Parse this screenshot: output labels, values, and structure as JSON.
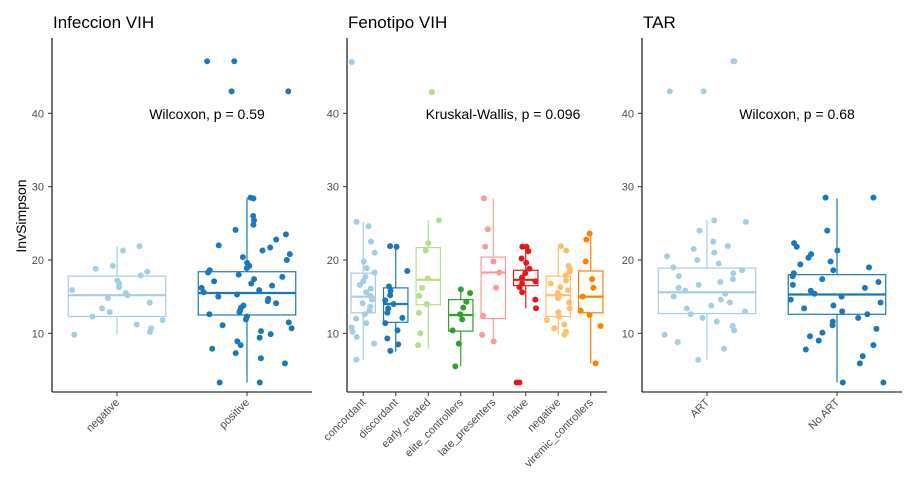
{
  "chart_data": {
    "type": "boxplot",
    "ylabel": "InvSimpson",
    "yticks": [
      10,
      20,
      30,
      40
    ],
    "ylim": [
      2,
      50
    ],
    "panels": [
      {
        "title": "Infeccion VIH",
        "stat_label": "Wilcoxon, p = 0.59",
        "groups": [
          {
            "name": "negative",
            "color": "#a6cee3",
            "box": {
              "min": 9.8,
              "q1": 12.3,
              "median": 15.2,
              "q3": 17.8,
              "max": 21.8
            },
            "points": [
              21.9,
              21.3,
              19.2,
              18.8,
              18.4,
              17.9,
              17.2,
              16.8,
              16.3,
              15.9,
              15.5,
              15.2,
              14.8,
              14.2,
              13.4,
              12.9,
              12.3,
              11.8,
              11.2,
              10.7,
              10.2,
              9.8
            ]
          },
          {
            "name": "positive",
            "color": "#1f78b4",
            "box": {
              "min": 3.3,
              "q1": 12.5,
              "median": 15.5,
              "q3": 18.4,
              "max": 28.5
            },
            "points": [
              47.1,
              47.1,
              43.0,
              43.0,
              28.5,
              28.4,
              26.0,
              25.4,
              24.8,
              24.1,
              23.5,
              22.8,
              22.0,
              21.7,
              21.3,
              20.8,
              20.4,
              20.0,
              19.6,
              19.2,
              18.9,
              18.6,
              18.3,
              18.0,
              17.7,
              17.4,
              17.1,
              16.8,
              16.5,
              16.2,
              15.9,
              15.6,
              15.3,
              15.0,
              14.7,
              14.4,
              14.1,
              13.8,
              13.5,
              13.2,
              12.9,
              12.6,
              12.3,
              11.9,
              11.5,
              11.1,
              10.7,
              10.3,
              9.9,
              9.4,
              8.9,
              8.4,
              7.9,
              7.3,
              6.6,
              5.9,
              3.3,
              3.3
            ]
          }
        ]
      },
      {
        "title": "Fenotipo VIH",
        "stat_label": "Kruskal-Wallis, p = 0.096",
        "groups": [
          {
            "name": "concordant",
            "color": "#a6cee3",
            "box": {
              "min": 6.4,
              "q1": 12.8,
              "median": 15.0,
              "q3": 18.2,
              "max": 25.2
            },
            "points": [
              47.0,
              25.2,
              24.6,
              22.5,
              21.0,
              19.8,
              18.9,
              18.3,
              17.7,
              17.1,
              16.6,
              16.1,
              15.6,
              15.1,
              14.6,
              14.1,
              13.6,
              13.1,
              12.6,
              12.0,
              11.4,
              10.8,
              10.2,
              9.5,
              8.6,
              6.4
            ]
          },
          {
            "name": "discordant",
            "color": "#1f78b4",
            "box": {
              "min": 7.5,
              "q1": 11.5,
              "median": 14.0,
              "q3": 16.2,
              "max": 21.8
            },
            "points": [
              21.9,
              21.8,
              18.5,
              16.4,
              15.8,
              15.2,
              14.5,
              14.0,
              13.4,
              12.8,
              12.1,
              11.4,
              10.4,
              9.3,
              8.5,
              7.6
            ]
          },
          {
            "name": "early_treated",
            "color": "#b2df8a",
            "box": {
              "min": 7.9,
              "q1": 13.9,
              "median": 17.3,
              "q3": 21.7,
              "max": 25.4
            },
            "points": [
              42.9,
              25.4,
              22.3,
              21.3,
              17.5,
              16.2,
              15.1,
              14.0,
              12.8,
              10.0,
              8.4
            ]
          },
          {
            "name": "elite_controllers",
            "color": "#33a02c",
            "box": {
              "min": 5.5,
              "q1": 10.3,
              "median": 12.5,
              "q3": 14.6,
              "max": 16.0
            },
            "points": [
              16.0,
              15.5,
              14.3,
              13.5,
              12.6,
              11.9,
              10.4,
              8.6,
              5.5
            ]
          },
          {
            "name": "late_presenters",
            "color": "#fb9a99",
            "box": {
              "min": 8.9,
              "q1": 12.0,
              "median": 18.3,
              "q3": 20.4,
              "max": 28.4
            },
            "points": [
              28.4,
              24.2,
              21.8,
              19.8,
              18.3,
              16.2,
              12.4,
              9.8,
              8.9
            ]
          },
          {
            "name": "naive",
            "color": "#e31a1c",
            "box": {
              "min": 13.4,
              "q1": 16.5,
              "median": 17.3,
              "q3": 18.6,
              "max": 21.8
            },
            "points": [
              21.8,
              21.8,
              21.2,
              20.2,
              19.6,
              18.8,
              18.2,
              17.6,
              17.1,
              16.8,
              16.3,
              15.6,
              14.6,
              13.4,
              3.3,
              3.3
            ]
          },
          {
            "name": "negative",
            "color": "#fdbf6f",
            "box": {
              "min": 9.8,
              "q1": 12.3,
              "median": 15.2,
              "q3": 17.8,
              "max": 21.8
            },
            "points": [
              21.9,
              21.3,
              19.2,
              18.8,
              18.4,
              17.9,
              17.2,
              16.8,
              16.3,
              15.9,
              15.5,
              15.2,
              14.8,
              14.2,
              13.4,
              12.9,
              12.3,
              11.8,
              11.2,
              10.7,
              10.2,
              9.8
            ]
          },
          {
            "name": "viremic_controllers",
            "color": "#ff7f00",
            "box": {
              "min": 5.9,
              "q1": 12.8,
              "median": 15.0,
              "q3": 18.5,
              "max": 23.6
            },
            "points": [
              23.6,
              22.8,
              19.8,
              17.4,
              16.2,
              15.0,
              13.1,
              12.5,
              11.0,
              5.9
            ]
          }
        ]
      },
      {
        "title": "TAR",
        "stat_label": "Wilcoxon, p = 0.68",
        "groups": [
          {
            "name": "ART",
            "color": "#a6cee3",
            "box": {
              "min": 6.4,
              "q1": 12.7,
              "median": 15.6,
              "q3": 18.9,
              "max": 25.4
            },
            "points": [
              47.1,
              47.1,
              43.0,
              43.0,
              25.4,
              25.2,
              24.0,
              22.5,
              21.9,
              21.5,
              21.0,
              20.5,
              20.0,
              19.5,
              19.0,
              18.6,
              18.2,
              17.8,
              17.4,
              17.0,
              16.6,
              16.2,
              15.8,
              15.4,
              15.0,
              14.6,
              14.2,
              13.8,
              13.4,
              13.0,
              12.6,
              12.1,
              11.6,
              11.0,
              10.4,
              9.8,
              8.8,
              7.9,
              6.4
            ]
          },
          {
            "name": "No ART",
            "color": "#1f78b4",
            "box": {
              "min": 3.3,
              "q1": 12.6,
              "median": 15.3,
              "q3": 18.0,
              "max": 28.4
            },
            "points": [
              28.5,
              28.5,
              24.0,
              22.3,
              21.8,
              21.3,
              20.8,
              20.3,
              19.8,
              19.4,
              19.0,
              18.6,
              18.2,
              17.8,
              17.4,
              17.0,
              16.6,
              16.2,
              15.8,
              15.4,
              15.0,
              14.6,
              14.2,
              13.8,
              13.4,
              13.0,
              12.6,
              12.1,
              11.6,
              11.1,
              10.6,
              10.1,
              9.6,
              9.0,
              8.4,
              7.8,
              6.9,
              5.9,
              3.3,
              3.3
            ]
          }
        ]
      }
    ]
  }
}
